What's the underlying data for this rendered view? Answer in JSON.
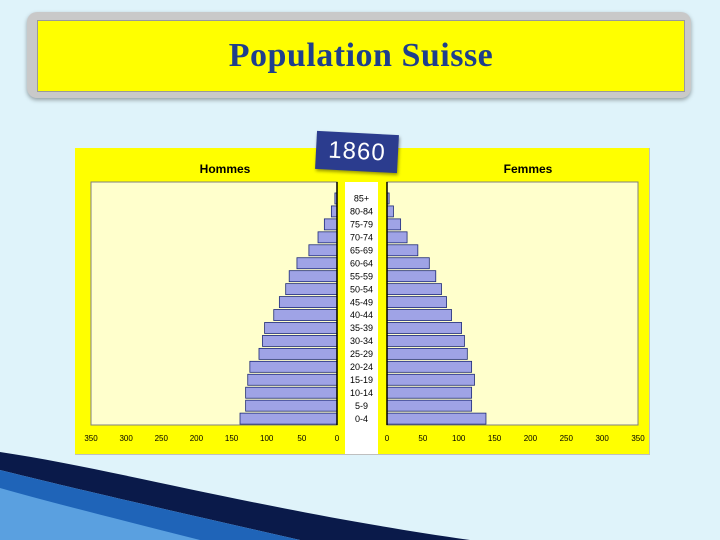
{
  "slide": {
    "title": "Population Suisse",
    "year": "1860"
  },
  "chart_data": {
    "type": "bar",
    "orientation": "horizontal-pyramid",
    "categories": [
      "85+",
      "80-84",
      "75-79",
      "70-74",
      "65-69",
      "60-64",
      "55-59",
      "50-54",
      "45-49",
      "40-44",
      "35-39",
      "30-34",
      "25-29",
      "20-24",
      "15-19",
      "10-14",
      "5-9",
      "0-4"
    ],
    "series": [
      {
        "name": "Hommes",
        "values": [
          3,
          8,
          18,
          27,
          40,
          57,
          68,
          73,
          82,
          90,
          103,
          106,
          111,
          124,
          127,
          130,
          130,
          138
        ]
      },
      {
        "name": "Femmes",
        "values": [
          3,
          9,
          19,
          28,
          43,
          59,
          68,
          76,
          83,
          90,
          104,
          108,
          112,
          118,
          122,
          118,
          118,
          138
        ]
      }
    ],
    "xlim": [
      0,
      350
    ],
    "ticks": [
      "350",
      "300",
      "250",
      "200",
      "150",
      "100",
      "50",
      "0"
    ],
    "ticks_right": [
      "0",
      "50",
      "100",
      "150",
      "200",
      "250",
      "300",
      "350"
    ],
    "grid": false
  },
  "colors": {
    "bar_fill": "#9fa3e6",
    "bar_stroke": "#1e2a78",
    "plot_bg": "#ffffcc",
    "panel_bg": "#ffff00"
  }
}
